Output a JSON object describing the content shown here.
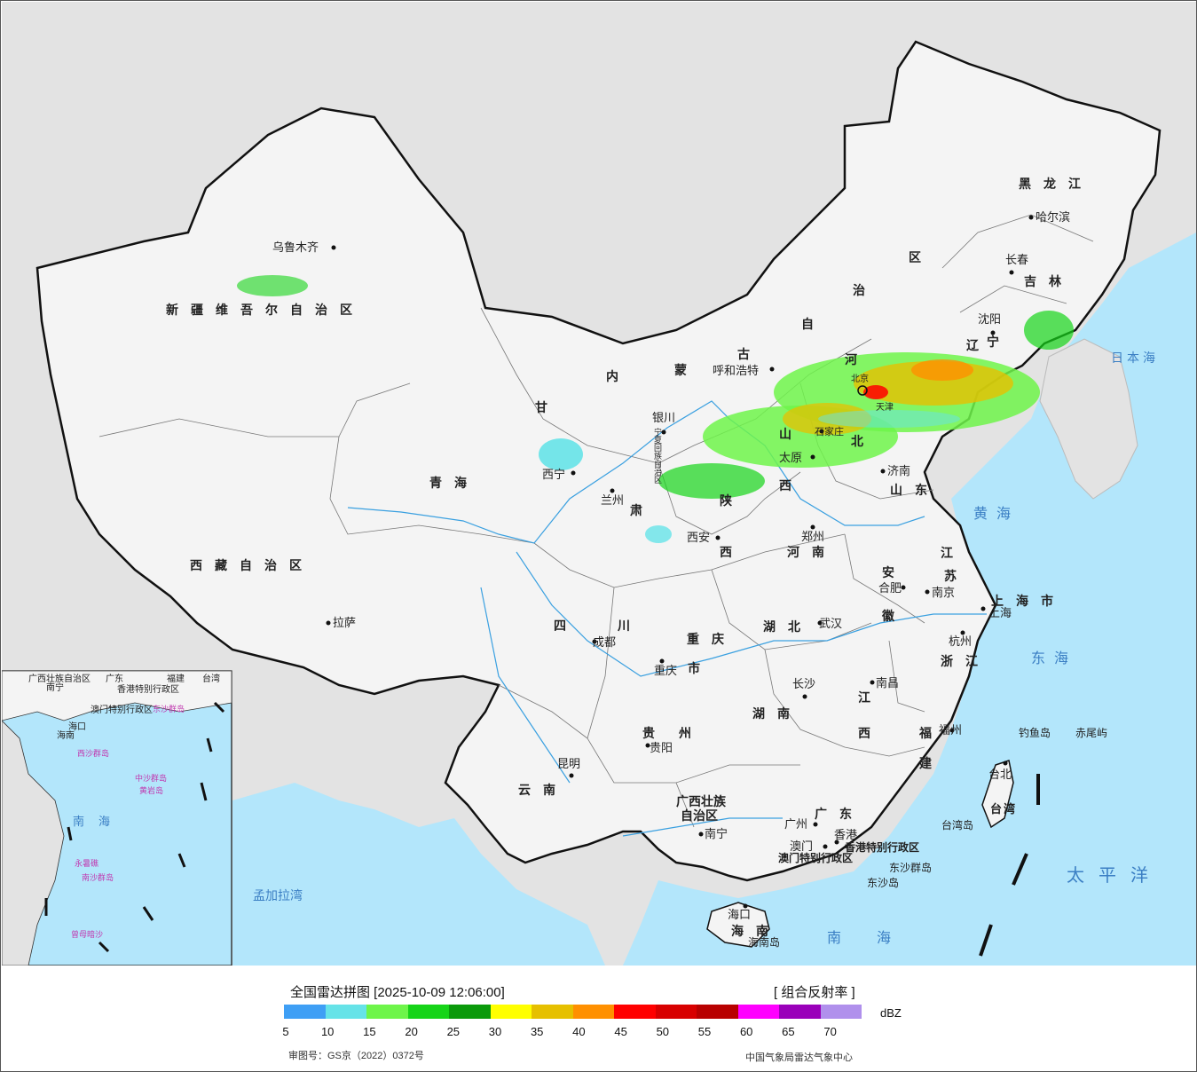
{
  "legend": {
    "title": "全国雷达拼图 [2025-10-09 12:06:00]",
    "product": "[ 组合反射率 ]",
    "unit": "dBZ",
    "review_number": "审图号：GS京（2022）0372号",
    "issuer": "中国气象局雷达气象中心",
    "colors": [
      "#3f9ff5",
      "#66e3e8",
      "#6ef54a",
      "#16d418",
      "#0a9a0b",
      "#ffff00",
      "#e6c000",
      "#ff9000",
      "#ff0000",
      "#d80000",
      "#b80000",
      "#ff00ff",
      "#9a00ba",
      "#b090ec"
    ],
    "ticks": [
      "5",
      "10",
      "15",
      "20",
      "25",
      "30",
      "35",
      "40",
      "45",
      "50",
      "55",
      "60",
      "65",
      "70"
    ]
  },
  "map": {
    "provinces": {
      "xinjiang": "新疆维吾尔自治区",
      "xizang": "西藏自治区",
      "qinghai": "青海",
      "gansu": "甘",
      "gansu2": "肃",
      "neimenggu1": "内",
      "neimenggu2": "蒙",
      "neimenggu3": "古",
      "neimenggu4": "自",
      "neimenggu5": "治",
      "neimenggu6": "区",
      "heilongjiang": "黑龙江",
      "jilin": "吉林",
      "liaoning1": "辽",
      "liaoning2": "宁",
      "hebei1": "河",
      "hebei2": "北",
      "shanxi1": "山",
      "shanxi2": "西",
      "shaanxi1": "陕",
      "shaanxi2": "西",
      "shandong": "山东",
      "henan": "河南",
      "jiangsu1": "江",
      "jiangsu2": "苏",
      "anhui1": "安",
      "anhui2": "徽",
      "shanghai": "上海市",
      "zhejiang": "浙江",
      "jiangxi1": "江",
      "jiangxi2": "西",
      "fujian1": "福",
      "fujian2": "建",
      "hubei": "湖北",
      "hunan": "湖南",
      "sichuan1": "四",
      "sichuan2": "川",
      "chongqing1": "重庆",
      "chongqing2": "市",
      "guizhou1": "贵",
      "guizhou2": "州",
      "yunnan": "云南",
      "guangxi1": "广西壮族",
      "guangxi2": "自治区",
      "guangdong": "广东",
      "hainan": "海南",
      "taiwan": "台湾",
      "ningxia": "宁夏回族自治区",
      "tianjin": "天津",
      "beijing": "北京"
    },
    "cities": {
      "urumqi": "乌鲁木齐",
      "lhasa": "拉萨",
      "xining": "西宁",
      "lanzhou": "兰州",
      "yinchuan": "银川",
      "hohhot": "呼和浩特",
      "shijiazhuang": "石家庄",
      "taiyuan": "太原",
      "jinan": "济南",
      "xian": "西安",
      "zhengzhou": "郑州",
      "hefei": "合肥",
      "nanjing": "南京",
      "shanghai": "上海",
      "hangzhou": "杭州",
      "wuhan": "武汉",
      "nanchang": "南昌",
      "changsha": "长沙",
      "fuzhou": "福州",
      "taibei": "台北",
      "chengdu": "成都",
      "chongqing": "重庆",
      "guiyang": "贵阳",
      "kunming": "昆明",
      "nanning": "南宁",
      "guangzhou": "广州",
      "hongkong": "香港",
      "macau": "澳门",
      "haikou": "海口",
      "harbin": "哈尔滨",
      "changchun": "长春",
      "shenyang": "沈阳"
    },
    "special": {
      "hk_sar": "香港特别行政区",
      "macau_sar": "澳门特别行政区",
      "dongsha": "东沙群岛",
      "dongsha2": "东沙岛",
      "hainan_island": "海南岛",
      "taiwan_island": "台湾岛",
      "diaoyu": "钓鱼岛",
      "chiwei": "赤尾屿"
    },
    "seas": {
      "japan_sea": "日本海",
      "yellow_sea": "黄海",
      "east_sea": "东海",
      "pacific": "太平洋",
      "south_sea": "南海",
      "bengal": "孟加拉湾"
    },
    "inset": {
      "guangxi": "广西壮族自治区",
      "guangdong": "广东",
      "fujian": "福建",
      "taiwan": "台湾",
      "nanning": "南宁",
      "hk": "香港特别行政区",
      "macau": "澳门特别行政区",
      "dongsha": "东沙群岛",
      "hainan": "海南",
      "haikou": "海口",
      "xisha": "西沙群岛",
      "zhongsha": "中沙群岛",
      "huangyan": "黄岩岛",
      "nanhai": "南海",
      "yongshu": "永暑礁",
      "nansha": "南沙群岛",
      "zengmu": "曾母暗沙"
    }
  }
}
